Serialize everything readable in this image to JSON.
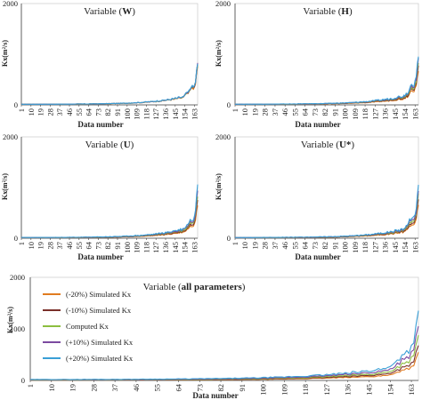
{
  "chart_data": [
    {
      "type": "line",
      "panel": "W",
      "title_prefix": "Variable (",
      "title_var": "W",
      "title_suffix": ")",
      "xlabel": "Data number",
      "ylabel": "Kx(m²/s)",
      "ylim": [
        0,
        2000
      ],
      "yticks": [
        "0",
        "2000"
      ],
      "xticks": [
        "1",
        "10",
        "19",
        "28",
        "37",
        "46",
        "55",
        "64",
        "73",
        "82",
        "91",
        "100",
        "109",
        "118",
        "127",
        "136",
        "145",
        "154",
        "163"
      ],
      "n_points": 166,
      "base_peak": 800,
      "series_scales": [
        0.96,
        0.98,
        1.0,
        1.02,
        1.04
      ]
    },
    {
      "type": "line",
      "panel": "H",
      "title_prefix": "Variable (",
      "title_var": "H",
      "title_suffix": ")",
      "xlabel": "Data number",
      "ylabel": "Kx(m²/s)",
      "ylim": [
        0,
        2000
      ],
      "yticks": [
        "0",
        "2000"
      ],
      "xticks": [
        "1",
        "10",
        "19",
        "28",
        "37",
        "46",
        "55",
        "64",
        "73",
        "82",
        "91",
        "100",
        "109",
        "118",
        "127",
        "136",
        "145",
        "154",
        "163"
      ],
      "n_points": 166,
      "base_peak": 850,
      "series_scales": [
        0.8,
        0.9,
        1.0,
        1.08,
        1.16
      ]
    },
    {
      "type": "line",
      "panel": "U",
      "title_prefix": "Variable (",
      "title_var": "U",
      "title_suffix": ")",
      "xlabel": "Data number",
      "ylabel": "Kx(m²/s)",
      "ylim": [
        0,
        2000
      ],
      "yticks": [
        "0",
        "2000"
      ],
      "xticks": [
        "1",
        "10",
        "19",
        "28",
        "37",
        "46",
        "55",
        "64",
        "73",
        "82",
        "91",
        "100",
        "109",
        "118",
        "127",
        "136",
        "145",
        "154",
        "163"
      ],
      "n_points": 166,
      "base_peak": 850,
      "series_scales": [
        0.78,
        0.88,
        1.0,
        1.1,
        1.2
      ]
    },
    {
      "type": "line",
      "panel": "U*",
      "title_prefix": "Variable (",
      "title_var": "U*",
      "title_suffix": ")",
      "xlabel": "Data number",
      "ylabel": "Kx(m²/s)",
      "ylim": [
        0,
        2000
      ],
      "yticks": [
        "0",
        "2000"
      ],
      "xticks": [
        "1",
        "10",
        "19",
        "28",
        "37",
        "46",
        "55",
        "64",
        "73",
        "82",
        "91",
        "100",
        "109",
        "118",
        "127",
        "136",
        "145",
        "154",
        "163"
      ],
      "n_points": 166,
      "base_peak": 850,
      "series_scales": [
        0.8,
        0.9,
        1.0,
        1.1,
        1.2
      ]
    },
    {
      "type": "line",
      "panel": "all parameters",
      "title_prefix": "Variable (",
      "title_var": "all parameters",
      "title_suffix": ")",
      "xlabel": "Data number",
      "ylabel": "Kx(m²/s)",
      "ylim": [
        0,
        2000
      ],
      "yticks": [
        "0",
        "1000",
        "2000"
      ],
      "xticks": [
        "1",
        "10",
        "19",
        "28",
        "37",
        "46",
        "55",
        "64",
        "73",
        "82",
        "91",
        "100",
        "109",
        "118",
        "127",
        "136",
        "145",
        "154",
        "163"
      ],
      "n_points": 166,
      "base_peak": 850,
      "series_scales": [
        0.62,
        0.8,
        1.0,
        1.25,
        1.55
      ],
      "legend": [
        {
          "label": "(-20%) Simulated Kx",
          "color": "#e07b20"
        },
        {
          "label": "(-10%) Simulated Kx",
          "color": "#7a2f2a"
        },
        {
          "label": "Computed Kx",
          "color": "#8cbe3f"
        },
        {
          "label": "(+10%) Simulated Kx",
          "color": "#7b4aa0"
        },
        {
          "label": "(+20%) Simulated Kx",
          "color": "#3a9fd6"
        }
      ],
      "legend_placement": "left"
    }
  ],
  "series_colors": [
    "#e07b20",
    "#7a2f2a",
    "#8cbe3f",
    "#7b4aa0",
    "#3a9fd6"
  ]
}
